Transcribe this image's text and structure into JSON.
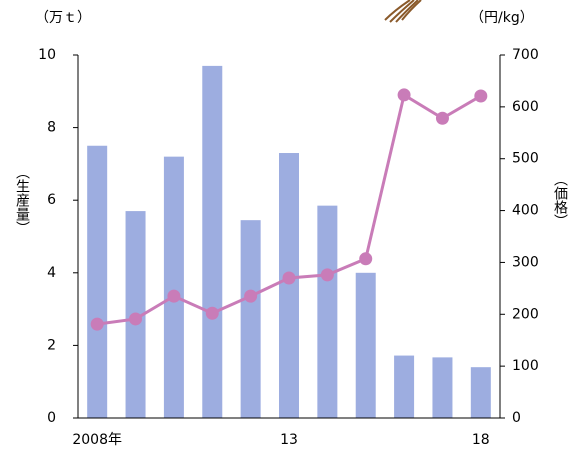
{
  "chart_data": {
    "type": "bar_line",
    "y_label_unit": "（万ｔ）",
    "y2_label_unit": "（円/kg）",
    "y_label": "（生産量）",
    "y2_label": "（価格）",
    "categories": [
      "2008年",
      null,
      null,
      null,
      null,
      "13",
      null,
      null,
      null,
      null,
      "18"
    ],
    "series": [
      {
        "name": "生産量",
        "type": "bar",
        "color": "#9dade0",
        "values": [
          7.5,
          5.7,
          7.2,
          9.7,
          5.45,
          7.3,
          5.85,
          4.0,
          1.72,
          1.67,
          1.4
        ]
      },
      {
        "name": "価格",
        "type": "line",
        "axis": "y2",
        "color": "#c97cb8",
        "values": [
          181,
          191,
          235,
          202,
          235,
          270,
          276,
          307,
          623,
          578,
          621
        ]
      }
    ],
    "ylim": [
      0,
      10
    ],
    "yticks": [
      0,
      2,
      4,
      6,
      8,
      10
    ],
    "y2lim": [
      0,
      700
    ],
    "y2ticks": [
      0,
      100,
      200,
      300,
      400,
      500,
      600,
      700
    ]
  }
}
